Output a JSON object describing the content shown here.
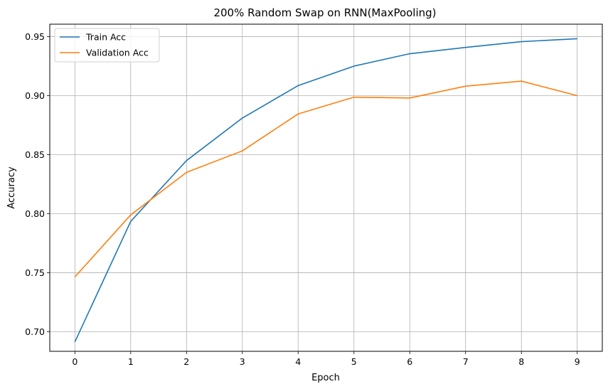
{
  "chart_data": {
    "type": "line",
    "title": "200% Random Swap on RNN(MaxPooling)",
    "xlabel": "Epoch",
    "ylabel": "Accuracy",
    "x": [
      0,
      1,
      2,
      3,
      4,
      5,
      6,
      7,
      8,
      9
    ],
    "xticks": [
      "0",
      "1",
      "2",
      "3",
      "4",
      "5",
      "6",
      "7",
      "8",
      "9"
    ],
    "yticks": [
      "0.70",
      "0.75",
      "0.80",
      "0.85",
      "0.90",
      "0.95"
    ],
    "ytick_values": [
      0.7,
      0.75,
      0.8,
      0.85,
      0.9,
      0.95
    ],
    "xlim": [
      -0.45,
      9.45
    ],
    "ylim": [
      0.6835,
      0.9605
    ],
    "grid": true,
    "legend": "top-left",
    "series": [
      {
        "name": "Train Acc",
        "color": "#1f77b4",
        "values": [
          0.6915,
          0.7935,
          0.845,
          0.881,
          0.9085,
          0.925,
          0.9355,
          0.9408,
          0.9457,
          0.9482
        ]
      },
      {
        "name": "Validation Acc",
        "color": "#ff7f0e",
        "values": [
          0.7465,
          0.799,
          0.835,
          0.8532,
          0.8845,
          0.8987,
          0.898,
          0.908,
          0.9123,
          0.9
        ]
      }
    ]
  }
}
